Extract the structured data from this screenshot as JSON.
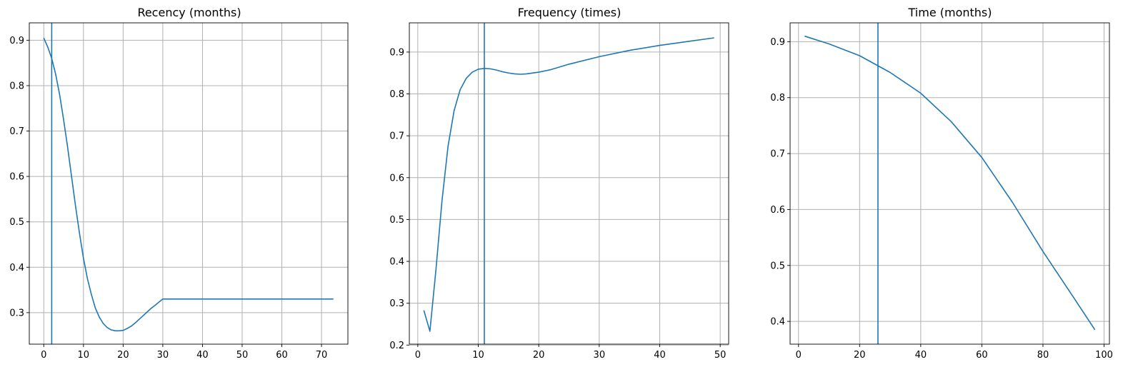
{
  "chart_data": [
    {
      "type": "line",
      "title": "Recency (months)",
      "xlabel": "",
      "ylabel": "",
      "xlim": [
        -3.65,
        76.65
      ],
      "ylim": [
        0.2306,
        0.9383
      ],
      "xticks": [
        0,
        10,
        20,
        30,
        40,
        50,
        60,
        70
      ],
      "yticks": [
        0.3,
        0.4,
        0.5,
        0.6,
        0.7,
        0.8,
        0.9
      ],
      "grid": true,
      "line_color": "#1f77b4",
      "vline_x": 2,
      "series": [
        {
          "x": [
            0,
            1,
            2,
            3,
            4,
            5,
            6,
            7,
            8,
            9,
            10,
            11,
            12,
            13,
            14,
            15,
            16,
            17,
            18,
            19,
            20,
            21,
            22,
            23,
            24,
            25,
            26,
            27,
            28,
            29,
            30,
            40,
            50,
            60,
            73
          ],
          "y": [
            0.905,
            0.885,
            0.86,
            0.825,
            0.78,
            0.725,
            0.665,
            0.6,
            0.535,
            0.475,
            0.42,
            0.375,
            0.34,
            0.31,
            0.29,
            0.276,
            0.267,
            0.262,
            0.26,
            0.26,
            0.261,
            0.265,
            0.27,
            0.277,
            0.285,
            0.293,
            0.301,
            0.309,
            0.316,
            0.323,
            0.33,
            0.33,
            0.33,
            0.33,
            0.33
          ]
        }
      ]
    },
    {
      "type": "line",
      "title": "Frequency (times)",
      "xlabel": "",
      "ylabel": "",
      "xlim": [
        -1.4,
        51.4
      ],
      "ylim": [
        0.2022,
        0.9698
      ],
      "xticks": [
        0,
        10,
        20,
        30,
        40,
        50
      ],
      "yticks": [
        0.2,
        0.3,
        0.4,
        0.5,
        0.6,
        0.7,
        0.8,
        0.9
      ],
      "grid": true,
      "line_color": "#1f77b4",
      "vline_x": 11,
      "series": [
        {
          "x": [
            1,
            2,
            3,
            4,
            5,
            6,
            7,
            8,
            9,
            10,
            11,
            12,
            13,
            14,
            15,
            16,
            17,
            18,
            20,
            22,
            25,
            30,
            35,
            40,
            45,
            49
          ],
          "y": [
            0.283,
            0.233,
            0.38,
            0.545,
            0.675,
            0.76,
            0.81,
            0.837,
            0.852,
            0.859,
            0.861,
            0.86,
            0.857,
            0.853,
            0.85,
            0.848,
            0.847,
            0.848,
            0.852,
            0.858,
            0.871,
            0.889,
            0.904,
            0.916,
            0.926,
            0.934
          ]
        }
      ]
    },
    {
      "type": "line",
      "title": "Time (months)",
      "xlabel": "",
      "ylabel": "",
      "xlim": [
        -2.75,
        101.75
      ],
      "ylim": [
        0.3593,
        0.9337
      ],
      "xticks": [
        0,
        20,
        40,
        60,
        80,
        100
      ],
      "yticks": [
        0.4,
        0.5,
        0.6,
        0.7,
        0.8,
        0.9
      ],
      "grid": true,
      "line_color": "#1f77b4",
      "vline_x": 26,
      "series": [
        {
          "x": [
            2,
            10,
            20,
            30,
            40,
            50,
            60,
            70,
            80,
            90,
            97
          ],
          "y": [
            0.91,
            0.896,
            0.875,
            0.845,
            0.808,
            0.757,
            0.693,
            0.613,
            0.525,
            0.443,
            0.385
          ]
        }
      ]
    }
  ]
}
